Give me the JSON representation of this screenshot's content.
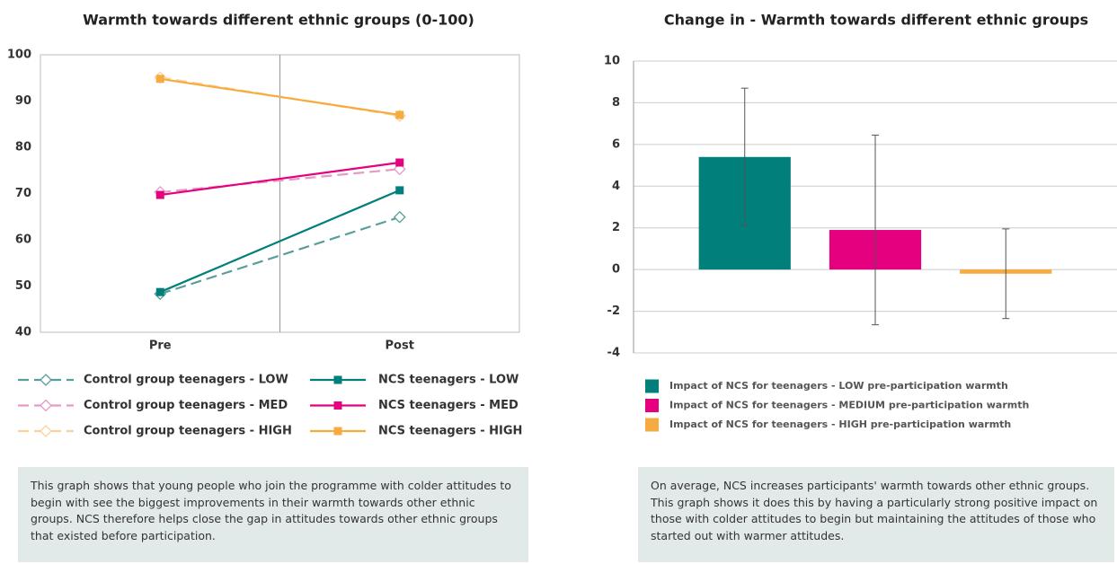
{
  "chart_data": [
    {
      "type": "line",
      "title": "Warmth towards different ethnic groups (0-100)",
      "categories": [
        "Pre",
        "Post"
      ],
      "ylim": [
        40,
        100
      ],
      "yticks": [
        40,
        50,
        60,
        70,
        80,
        90,
        100
      ],
      "series": [
        {
          "name": "Control group teenagers - LOW",
          "color": "#5a9e9c",
          "dash": true,
          "marker": "diamond",
          "values": [
            48.3,
            64.9
          ]
        },
        {
          "name": "Control group teenagers - MED",
          "color": "#e59ac6",
          "dash": true,
          "marker": "diamond",
          "values": [
            70.3,
            75.3
          ]
        },
        {
          "name": "Control group teenagers - HIGH",
          "color": "#fbd39a",
          "dash": true,
          "marker": "diamond",
          "values": [
            95.1,
            86.8
          ]
        },
        {
          "name": "NCS teenagers - LOW",
          "color": "#007f7b",
          "dash": false,
          "marker": "square",
          "values": [
            48.7,
            70.7
          ]
        },
        {
          "name": "NCS teenagers - MED",
          "color": "#e4007f",
          "dash": false,
          "marker": "square",
          "values": [
            69.7,
            76.7
          ]
        },
        {
          "name": "NCS teenagers - HIGH",
          "color": "#f6ab40",
          "dash": false,
          "marker": "square",
          "values": [
            94.8,
            87.0
          ]
        }
      ],
      "caption": "This graph shows that young people who join the programme with colder attitudes to begin with see the biggest improvements in their warmth towards other ethnic groups. NCS therefore helps close the gap in attitudes towards other ethnic groups that existed before participation."
    },
    {
      "type": "bar",
      "title": "Change in - Warmth towards different ethnic groups",
      "categories": [
        null
      ],
      "ylim": [
        -4,
        10
      ],
      "yticks": [
        -4,
        -2,
        0,
        2,
        4,
        6,
        8,
        10
      ],
      "grid": true,
      "series": [
        {
          "name": "Impact of NCS for teenagers - LOW pre-participation warmth",
          "color": "#007f7b",
          "values": [
            5.4
          ],
          "errors": [
            3.3
          ]
        },
        {
          "name": "Impact of NCS for teenagers - MEDIUM pre-participation warmth",
          "color": "#e4007f",
          "values": [
            1.9
          ],
          "errors": [
            4.55
          ]
        },
        {
          "name": "Impact of NCS for teenagers - HIGH pre-participation warmth",
          "color": "#f6ab40",
          "values": [
            -0.2
          ],
          "errors": [
            2.15
          ]
        }
      ],
      "caption": "On average, NCS increases participants' warmth towards other ethnic groups. This graph shows it does this by having a particularly strong positive impact on those with colder attitudes to begin but maintaining the attitudes of those who started out with warmer attitudes."
    }
  ]
}
